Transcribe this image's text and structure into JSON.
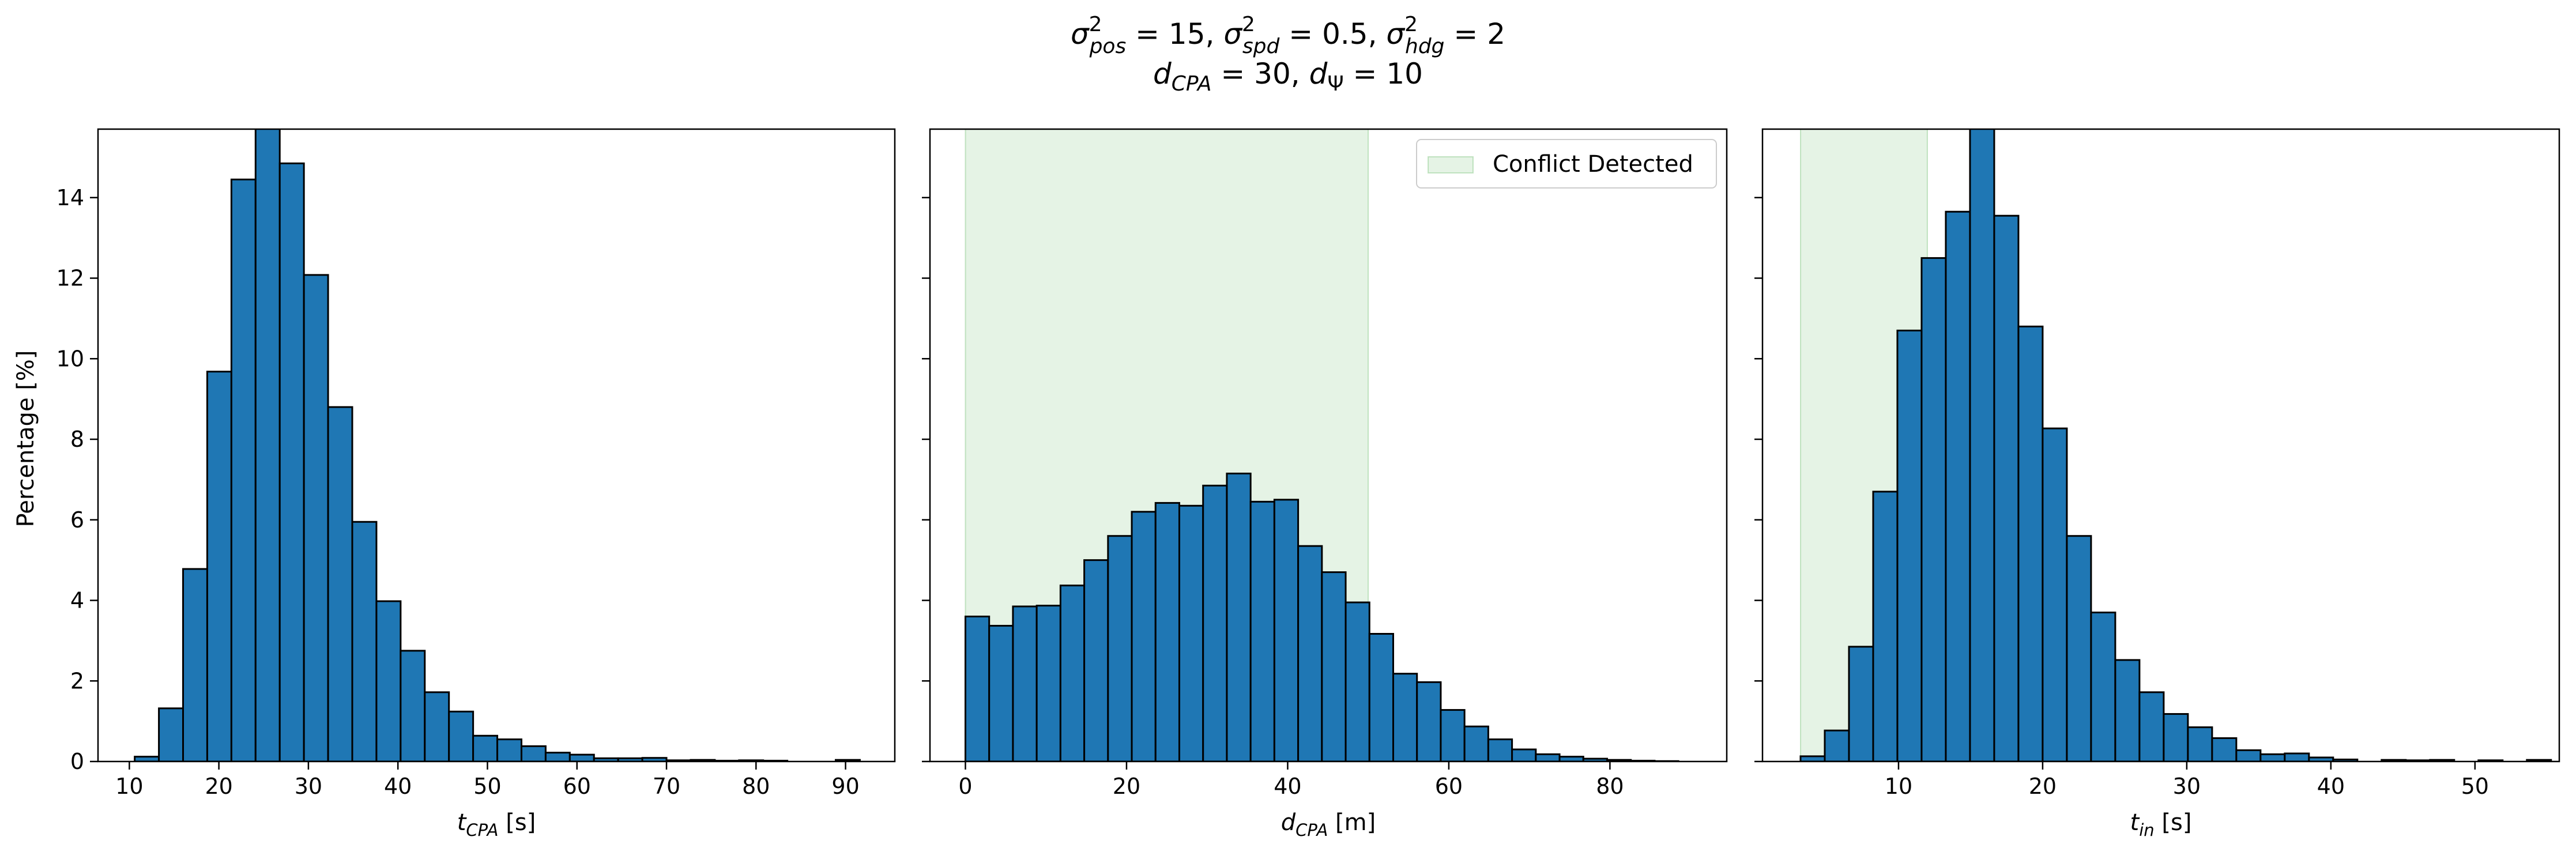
{
  "figure": {
    "title_line1": {
      "p1_base": "σ",
      "p1_sup": "2",
      "p1_sub": "pos",
      "p1_val": " = 15, ",
      "p2_base": "σ",
      "p2_sup": "2",
      "p2_sub": "spd",
      "p2_val": " = 0.5, ",
      "p3_base": "σ",
      "p3_sup": "2",
      "p3_sub": "hdg",
      "p3_val": " = 2"
    },
    "title_line2": {
      "p1_base": "d",
      "p1_sub": "CPA",
      "p1_val": " = 30, ",
      "p2_base": "d",
      "p2_sub": "Ψ",
      "p2_val": " = 10"
    },
    "ylabel": "Percentage [%]",
    "bar_color": "#1f77b4",
    "shade_color": "#2ca02c"
  },
  "chart_data": [
    {
      "type": "bar",
      "xlabel_base": "t",
      "xlabel_sub": "CPA",
      "xlabel_unit": " [s]",
      "xlim": [
        6.5,
        95.5
      ],
      "ylim": [
        0,
        15.7
      ],
      "xticks": [
        10,
        20,
        30,
        40,
        50,
        60,
        70,
        80,
        90
      ],
      "yticks": [
        0,
        2,
        4,
        6,
        8,
        10,
        12,
        14
      ],
      "bin_start": 10.6,
      "bin_width": 2.7,
      "values": [
        0.12,
        1.32,
        4.78,
        9.68,
        14.45,
        15.8,
        14.85,
        12.08,
        8.8,
        5.95,
        3.98,
        2.75,
        1.72,
        1.24,
        0.64,
        0.55,
        0.38,
        0.22,
        0.17,
        0.08,
        0.08,
        0.09,
        0.03,
        0.04,
        0.02,
        0.03,
        0.02,
        0.0,
        0.0,
        0.04
      ],
      "shade": null,
      "legend": null
    },
    {
      "type": "bar",
      "xlabel_base": "d",
      "xlabel_sub": "CPA",
      "xlabel_unit": " [m]",
      "xlim": [
        -4.4,
        94.5
      ],
      "ylim": [
        0,
        15.7
      ],
      "xticks": [
        0,
        20,
        40,
        60,
        80
      ],
      "yticks": [
        0,
        2,
        4,
        6,
        8,
        10,
        12,
        14
      ],
      "bin_start": 0.0,
      "bin_width": 2.95,
      "values": [
        3.6,
        3.37,
        3.85,
        3.87,
        4.37,
        5.0,
        5.6,
        6.2,
        6.42,
        6.35,
        6.85,
        7.15,
        6.45,
        6.5,
        5.35,
        4.7,
        3.95,
        3.17,
        2.18,
        1.97,
        1.28,
        0.87,
        0.55,
        0.3,
        0.18,
        0.12,
        0.07,
        0.04,
        0.02,
        0.01
      ],
      "shade": [
        0,
        50
      ],
      "legend": {
        "label": "Conflict Detected",
        "position": "top-right"
      }
    },
    {
      "type": "bar",
      "xlabel_base": "t",
      "xlabel_sub": "in",
      "xlabel_unit": " [s]",
      "xlim": [
        0.56,
        55.85
      ],
      "ylim": [
        0,
        15.7
      ],
      "xticks": [
        10,
        20,
        30,
        40,
        50
      ],
      "yticks": [
        0,
        2,
        4,
        6,
        8,
        10,
        12,
        14
      ],
      "bin_start": 3.2,
      "bin_width": 1.68,
      "values": [
        0.13,
        0.77,
        2.85,
        6.7,
        10.7,
        12.5,
        13.65,
        15.8,
        13.55,
        10.8,
        8.27,
        5.6,
        3.7,
        2.52,
        1.72,
        1.18,
        0.85,
        0.58,
        0.28,
        0.18,
        0.2,
        0.1,
        0.05,
        0.0,
        0.04,
        0.03,
        0.04,
        0.0,
        0.03,
        0.0,
        0.04
      ],
      "shade": [
        3.2,
        12.0
      ],
      "legend": null
    }
  ]
}
